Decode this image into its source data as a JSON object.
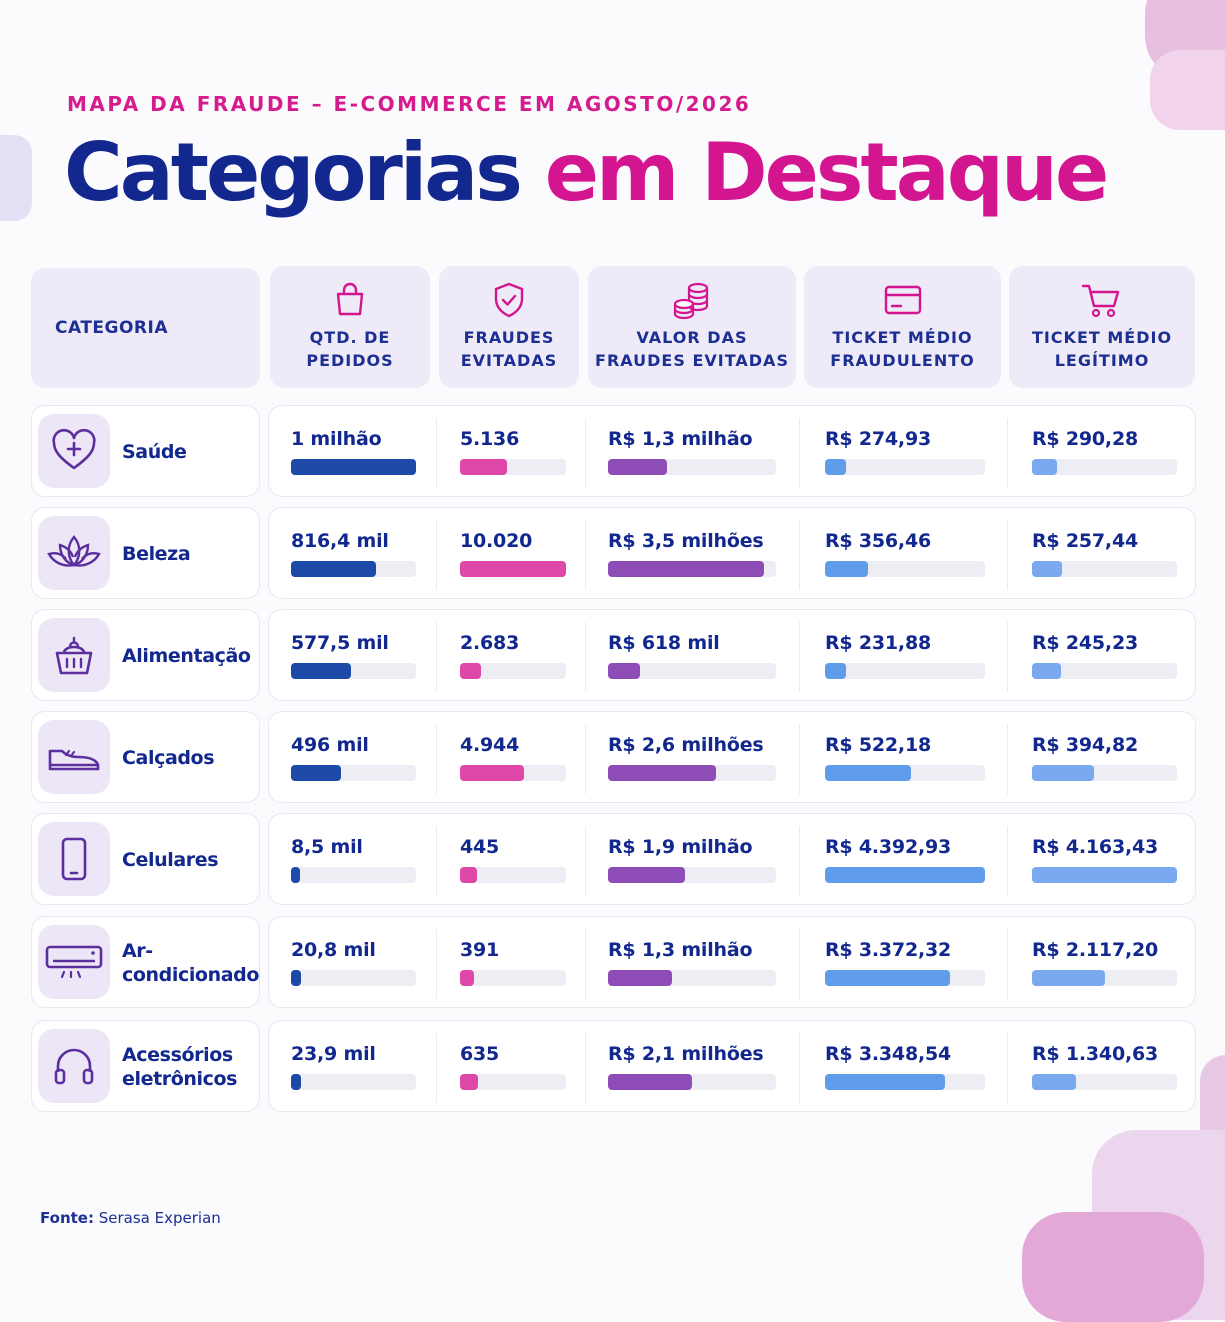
{
  "header": {
    "subtitle": "MAPA DA FRAUDE – E-COMMERCE EM AGOSTO/2026",
    "title_part1": "Categorias",
    "title_part2": "em Destaque"
  },
  "columns": {
    "category": "CATEGORIA",
    "orders": [
      "QTD. DE",
      "PEDIDOS"
    ],
    "frauds": [
      "FRAUDES",
      "EVITADAS"
    ],
    "value": [
      "VALOR DAS",
      "FRAUDES EVITADAS"
    ],
    "ticket_fraud": [
      "TICKET MÉDIO",
      "FRAUDULENTO"
    ],
    "ticket_legit": [
      "TICKET MÉDIO",
      "LEGÍTIMO"
    ]
  },
  "colors": {
    "navy": "#12288f",
    "magenta": "#d31590",
    "bar_orders": "#1d49a8",
    "bar_frauds": "#df47a8",
    "bar_value": "#8e4db6",
    "bar_ticket_fraud": "#5f9ce9",
    "bar_ticket_legit": "#7aa9ef",
    "icon_stroke": "#5b2f9e"
  },
  "rows": [
    {
      "name": "Saúde",
      "icon": "heart-plus-icon",
      "orders": "1 milhão",
      "orders_level": 1.0,
      "frauds": "5.136",
      "frauds_level": 0.44,
      "value": "R$ 1,3 milhão",
      "value_level": 0.35,
      "ticket_fraud": "R$ 274,93",
      "ticket_fraud_level": 0.13,
      "ticket_legit": "R$ 290,28",
      "ticket_legit_level": 0.17
    },
    {
      "name": "Beleza",
      "icon": "lotus-icon",
      "orders": "816,4 mil",
      "orders_level": 0.68,
      "frauds": "10.020",
      "frauds_level": 1.0,
      "value": "R$ 3,5 milhões",
      "value_level": 0.93,
      "ticket_fraud": "R$ 356,46",
      "ticket_fraud_level": 0.27,
      "ticket_legit": "R$ 257,44",
      "ticket_legit_level": 0.21
    },
    {
      "name": "Alimentação",
      "icon": "basket-icon",
      "orders": "577,5 mil",
      "orders_level": 0.48,
      "frauds": "2.683",
      "frauds_level": 0.2,
      "value": "R$ 618 mil",
      "value_level": 0.19,
      "ticket_fraud": "R$ 231,88",
      "ticket_fraud_level": 0.13,
      "ticket_legit": "R$ 245,23",
      "ticket_legit_level": 0.2
    },
    {
      "name": "Calçados",
      "icon": "sneaker-icon",
      "orders": "496 mil",
      "orders_level": 0.4,
      "frauds": "4.944",
      "frauds_level": 0.6,
      "value": "R$ 2,6 milhões",
      "value_level": 0.64,
      "ticket_fraud": "R$ 522,18",
      "ticket_fraud_level": 0.54,
      "ticket_legit": "R$ 394,82",
      "ticket_legit_level": 0.43
    },
    {
      "name": "Celulares",
      "icon": "smartphone-icon",
      "orders": "8,5 mil",
      "orders_level": 0.07,
      "frauds": "445",
      "frauds_level": 0.16,
      "value": "R$ 1,9 milhão",
      "value_level": 0.46,
      "ticket_fraud": "R$ 4.392,93",
      "ticket_fraud_level": 1.0,
      "ticket_legit": "R$ 4.163,43",
      "ticket_legit_level": 1.0
    },
    {
      "name": "Ar-condicionado",
      "icon": "air-conditioner-icon",
      "orders": "20,8 mil",
      "orders_level": 0.08,
      "frauds": "391",
      "frauds_level": 0.13,
      "value": "R$ 1,3 milhão",
      "value_level": 0.38,
      "ticket_fraud": "R$ 3.372,32",
      "ticket_fraud_level": 0.78,
      "ticket_legit": "R$ 2.117,20",
      "ticket_legit_level": 0.5
    },
    {
      "name": "Acessórios eletrônicos",
      "icon": "headphones-icon",
      "orders": "23,9 mil",
      "orders_level": 0.08,
      "frauds": "635",
      "frauds_level": 0.17,
      "value": "R$ 2,1 milhões",
      "value_level": 0.5,
      "ticket_fraud": "R$ 3.348,54",
      "ticket_fraud_level": 0.75,
      "ticket_legit": "R$ 1.340,63",
      "ticket_legit_level": 0.3
    }
  ],
  "footer": {
    "source_label": "Fonte:",
    "source_value": "Serasa Experian"
  }
}
